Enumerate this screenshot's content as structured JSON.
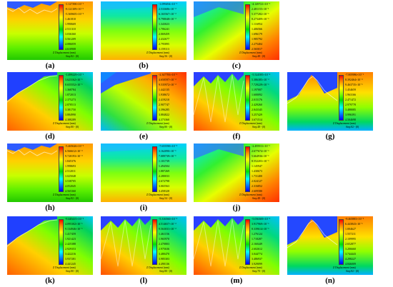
{
  "legend_title": "Z Displacement (mm)",
  "panels": [
    {
      "label": "(a)",
      "step": "Step 82 - (0)",
      "ticks": [
        "-1.127390×10⁻¹",
        "-8.121109×10⁻²",
        "-5.369605×10⁻²",
        "1.461810",
        "1.990669",
        "2.511310",
        "3.036360",
        "3.561209",
        "4.086059",
        "4.610908"
      ]
    },
    {
      "label": "(b)",
      "step": "Step 56 - (0)",
      "ticks": [
        "-1.099494×10⁻¹",
        "2.533686×10⁻²",
        "6.165567×10⁻²",
        "9.798048×10⁻²",
        "1.343023",
        "1.706241",
        "2.069459",
        "2.432677",
        "2.795895",
        "3.159113"
      ]
    },
    {
      "label": "(c)",
      "step": "Step 48 - (0)",
      "ticks": [
        "-4.149721×10⁻¹",
        "2.481155×10⁻¹",
        "5.377282×10⁻¹",
        "8.273409×10⁻¹",
        "1.116954",
        "1.406566",
        "1.696179",
        "1.985792",
        "2.275404",
        "2.565017"
      ]
    },
    {
      "label": "(d)",
      "step": "Step 80 - (0)",
      "ticks": [
        "-1.499229×10⁻¹",
        "3.623162×10⁻¹",
        "8.655552×10⁻¹",
        "1.368784",
        "1.872013",
        "2.375273",
        "2.878513",
        "3.381750",
        "3.884990",
        "4.388289"
      ]
    },
    {
      "label": "(e)",
      "step": "Step 80 - (0)",
      "ticks": [
        "-2.347783×10⁻¹",
        "4.650597×10⁻²",
        "9.535972×10⁻²",
        "1.442135",
        "1.938672",
        "2.419210",
        "2.907747",
        "3.396285",
        "3.884822",
        "4.373360"
      ]
    },
    {
      "label": "(f)",
      "step": "Step 48 - (0)",
      "ticks": [
        "-5.524585×10⁻²",
        "5.386385×10⁻²",
        "7.729229×10⁻¹",
        "1.197007",
        "1.600092",
        "2.015176",
        "2.429260",
        "2.843345",
        "3.257429",
        "3.671514"
      ]
    },
    {
      "label": "(g)",
      "step": "Step 82 - (0)",
      "ticks": [
        "-7.005986×10⁻¹",
        "8.392464×10⁻²",
        "9.463735×10⁻¹",
        "1.454659",
        "1.963166",
        "2.471472",
        "2.979778",
        "3.488085",
        "3.996391",
        "4.504698"
      ]
    },
    {
      "label": "(h)",
      "step": "Step 82 - (0)",
      "ticks": [
        "-5.465626×10⁻²",
        "6.566612×10⁻²",
        "9.720193×10⁻²",
        "1.845376",
        "1.998693",
        "2.512011",
        "3.025048",
        "3.538705",
        "4.052045",
        "4.565360"
      ]
    },
    {
      "label": "(i)",
      "step": "Step 54 - (0)",
      "ticks": [
        "-7.655590×10⁻²",
        "3.162090×10⁻¹",
        "7.089739×10⁻¹",
        "1.101739",
        "1.494504",
        "1.887269",
        "2.280033",
        "2.672798",
        "3.065563",
        "3.458328"
      ]
    },
    {
      "label": "(j)",
      "step": "Step 48 - (0)",
      "ticks": [
        "-2.495911×10⁻¹",
        "2.677674×10⁻¹",
        "5.664936×10⁻¹",
        "8.552203×10⁻¹",
        "1.145947",
        "1.430673",
        "1.731400",
        "2.024127",
        "2.316852",
        "2.609580"
      ]
    },
    {
      "label": "(k)",
      "step": "Step 80 - (0)",
      "ticks": [
        "-9.445415×10⁻²",
        "4.095302×10⁻¹",
        "9.134946×10⁻¹",
        "1.417459",
        "1.921423",
        "2.425388",
        "2.929353",
        "3.422216",
        "3.937281",
        "4.441245"
      ]
    },
    {
      "label": "(l)",
      "step": "Step 80 - (0)",
      "ticks": [
        "-5.316560×10⁻²",
        "4.514657×10⁻²",
        "9.563031×10⁻²",
        "1.461156",
        "1.965970",
        "2.470803",
        "2.975636",
        "3.480470",
        "3.985303",
        "4.490136"
      ]
    },
    {
      "label": "(m)",
      "step": "Step 70 - (0)",
      "ticks": [
        "-5.036369×10⁻²",
        "3.917969×10⁻¹",
        "8.339614×10⁻¹",
        "1.276124",
        "1.718287",
        "2.160449",
        "2.602612",
        "3.044774",
        "3.486937",
        "3.929099"
      ]
    },
    {
      "label": "(n)",
      "step": "Step 82 - (0)",
      "ticks": [
        "-9.465883×10⁻²",
        "6.443843×10⁻¹",
        "1.004627",
        "1.557211",
        "2.109995",
        "2.652877",
        "3.206660",
        "3.744443",
        "4.298227",
        "4.846009"
      ]
    }
  ],
  "colors": {
    "red": "#ff0000",
    "orange": "#ff7f00",
    "yellow": "#ffff00",
    "lime": "#7fff00",
    "green": "#00e000",
    "cyan": "#00ffff",
    "sky": "#0080ff",
    "blue": "#0000ff"
  }
}
